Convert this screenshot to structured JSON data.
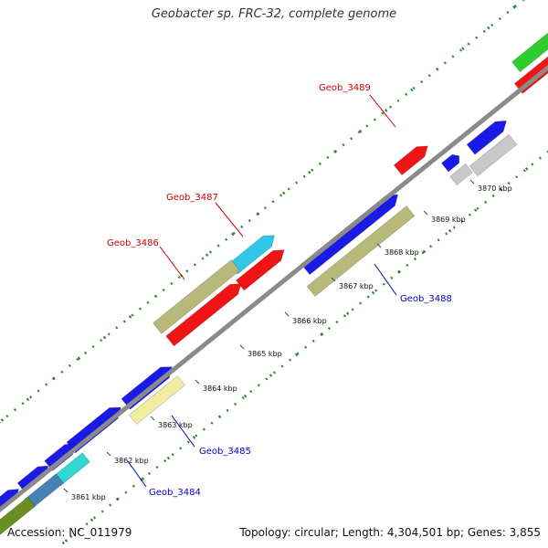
{
  "title": "Geobacter sp. FRC-32, complete genome",
  "footer": {
    "accession": "Accession: NC_011979",
    "summary": "Topology: circular; Length: 4,304,501 bp; Genes: 3,855"
  },
  "tick_labels": [
    {
      "id": "3861",
      "text": "3861 kbp"
    },
    {
      "id": "3862",
      "text": "3862 kbp"
    },
    {
      "id": "3863",
      "text": "3863 kbp"
    },
    {
      "id": "3864",
      "text": "3864 kbp"
    },
    {
      "id": "3865",
      "text": "3865 kbp"
    },
    {
      "id": "3866",
      "text": "3866 kbp"
    },
    {
      "id": "3867",
      "text": "3867 kbp"
    },
    {
      "id": "3868",
      "text": "3868 kbp"
    },
    {
      "id": "3869",
      "text": "3869 kbp"
    },
    {
      "id": "3870",
      "text": "3870 kbp"
    }
  ],
  "gene_labels": [
    {
      "id": "geob_3484",
      "text": "Geob_3484",
      "color": "#0000cc"
    },
    {
      "id": "geob_3485",
      "text": "Geob_3485",
      "color": "#0000cc"
    },
    {
      "id": "geob_3486",
      "text": "Geob_3486",
      "color": "#cc0000"
    },
    {
      "id": "geob_3487",
      "text": "Geob_3487",
      "color": "#cc0000"
    },
    {
      "id": "geob_3488",
      "text": "Geob_3488",
      "color": "#0000cc"
    },
    {
      "id": "geob_3489",
      "text": "Geob_3489",
      "color": "#cc0000"
    }
  ],
  "colors": {
    "backbone": "#8a8a8a",
    "tick_green": "#2a8a2a",
    "gene_blue": "#1a1ae6",
    "gene_red": "#f01414",
    "gene_olive": "#b8b87a",
    "gene_cyan": "#30c8e8",
    "gene_green": "#2ecc2e",
    "gene_gray": "#c8c8c8",
    "gene_yellow": "#f2eca0",
    "gene_teal": "#30d8d0",
    "gene_steel": "#4682b4",
    "gene_darkolive": "#6b8e23"
  }
}
